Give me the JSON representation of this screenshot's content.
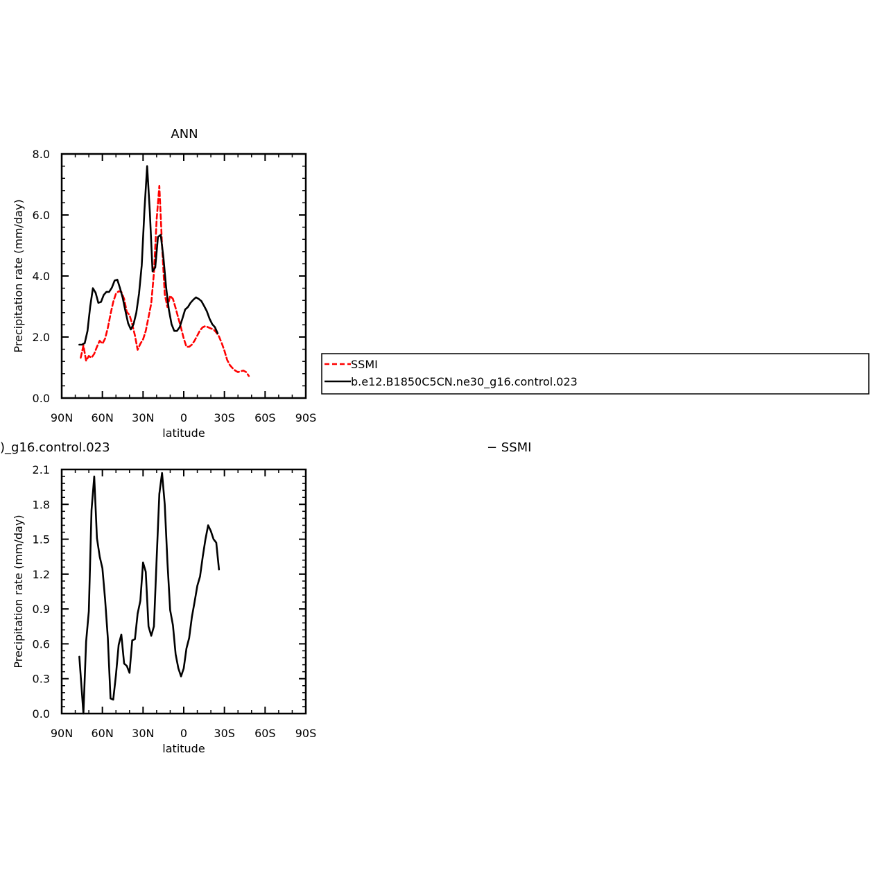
{
  "chart_data": [
    {
      "type": "line",
      "title": "ANN",
      "xlabel": "latitude",
      "ylabel": "Precipitation rate (mm/day)",
      "xlim": [
        -90,
        90
      ],
      "ylim": [
        0,
        8
      ],
      "x_tick_values": [
        -90,
        -60,
        -30,
        0,
        30,
        60,
        90
      ],
      "x_tick_labels": [
        "90N",
        "60N",
        "30N",
        "0",
        "30S",
        "60S",
        "90S"
      ],
      "y_tick_values": [
        0,
        2,
        4,
        6,
        8
      ],
      "y_tick_labels": [
        "0.0",
        "2.0",
        "4.0",
        "6.0",
        "8.0"
      ],
      "series": [
        {
          "name": "SSMI",
          "color": "#ff0000",
          "dash": "dashed",
          "points": [
            [
              -76,
              1.32
            ],
            [
              -74,
              1.72
            ],
            [
              -72,
              1.22
            ],
            [
              -70,
              1.38
            ],
            [
              -68,
              1.32
            ],
            [
              -66,
              1.45
            ],
            [
              -64,
              1.68
            ],
            [
              -62,
              1.88
            ],
            [
              -60,
              1.78
            ],
            [
              -58,
              1.95
            ],
            [
              -56,
              2.3
            ],
            [
              -54,
              2.75
            ],
            [
              -52,
              3.15
            ],
            [
              -50,
              3.42
            ],
            [
              -48,
              3.5
            ],
            [
              -46,
              3.48
            ],
            [
              -44,
              3.25
            ],
            [
              -42,
              2.82
            ],
            [
              -40,
              2.72
            ],
            [
              -38,
              2.42
            ],
            [
              -36,
              2.05
            ],
            [
              -34,
              1.58
            ],
            [
              -32,
              1.78
            ],
            [
              -30,
              1.92
            ],
            [
              -28,
              2.2
            ],
            [
              -26,
              2.65
            ],
            [
              -24,
              3.1
            ],
            [
              -22,
              4.1
            ],
            [
              -20,
              5.85
            ],
            [
              -18,
              6.95
            ],
            [
              -16,
              5.0
            ],
            [
              -14,
              3.4
            ],
            [
              -12,
              2.98
            ],
            [
              -10,
              3.35
            ],
            [
              -8,
              3.25
            ],
            [
              -6,
              2.95
            ],
            [
              -4,
              2.62
            ],
            [
              -2,
              2.3
            ],
            [
              0,
              1.95
            ],
            [
              2,
              1.68
            ],
            [
              4,
              1.68
            ],
            [
              6,
              1.75
            ],
            [
              8,
              1.88
            ],
            [
              10,
              2.05
            ],
            [
              12,
              2.22
            ],
            [
              14,
              2.32
            ],
            [
              16,
              2.36
            ],
            [
              18,
              2.32
            ],
            [
              20,
              2.28
            ],
            [
              22,
              2.25
            ],
            [
              24,
              2.15
            ],
            [
              26,
              2.02
            ],
            [
              28,
              1.8
            ],
            [
              30,
              1.55
            ],
            [
              32,
              1.25
            ],
            [
              34,
              1.08
            ],
            [
              36,
              0.98
            ],
            [
              38,
              0.9
            ],
            [
              40,
              0.85
            ],
            [
              42,
              0.88
            ],
            [
              44,
              0.9
            ],
            [
              46,
              0.85
            ],
            [
              48,
              0.72
            ]
          ]
        },
        {
          "name": "b.e12.B1850C5CN.ne30_g16.control.023",
          "color": "#000000",
          "dash": "solid",
          "points": [
            [
              -77,
              1.75
            ],
            [
              -75,
              1.75
            ],
            [
              -73,
              1.8
            ],
            [
              -71,
              2.2
            ],
            [
              -69,
              3.0
            ],
            [
              -67,
              3.6
            ],
            [
              -65,
              3.45
            ],
            [
              -63,
              3.12
            ],
            [
              -61,
              3.15
            ],
            [
              -59,
              3.38
            ],
            [
              -57,
              3.48
            ],
            [
              -55,
              3.48
            ],
            [
              -53,
              3.62
            ],
            [
              -51,
              3.85
            ],
            [
              -49,
              3.88
            ],
            [
              -47,
              3.6
            ],
            [
              -45,
              3.28
            ],
            [
              -43,
              2.85
            ],
            [
              -41,
              2.45
            ],
            [
              -39,
              2.25
            ],
            [
              -37,
              2.42
            ],
            [
              -35,
              2.8
            ],
            [
              -33,
              3.42
            ],
            [
              -31,
              4.35
            ],
            [
              -29,
              6.15
            ],
            [
              -27,
              7.6
            ],
            [
              -25,
              6.1
            ],
            [
              -23,
              4.15
            ],
            [
              -21,
              4.28
            ],
            [
              -19,
              5.28
            ],
            [
              -17,
              5.35
            ],
            [
              -15,
              4.6
            ],
            [
              -13,
              3.62
            ],
            [
              -11,
              2.9
            ],
            [
              -9,
              2.42
            ],
            [
              -7,
              2.2
            ],
            [
              -5,
              2.2
            ],
            [
              -3,
              2.32
            ],
            [
              -1,
              2.6
            ],
            [
              1,
              2.9
            ],
            [
              3,
              2.98
            ],
            [
              5,
              3.12
            ],
            [
              7,
              3.22
            ],
            [
              9,
              3.3
            ],
            [
              11,
              3.25
            ],
            [
              13,
              3.18
            ],
            [
              15,
              3.02
            ],
            [
              17,
              2.85
            ],
            [
              19,
              2.6
            ],
            [
              21,
              2.42
            ],
            [
              23,
              2.32
            ],
            [
              25,
              2.12
            ]
          ]
        }
      ],
      "legend": {
        "placement": "right",
        "entries": [
          "SSMI",
          "b.e12.B1850C5CN.ne30_g16.control.023"
        ]
      }
    },
    {
      "type": "line",
      "title_fragment_left": ")_g16.control.023",
      "title_fragment_right": "− SSMI",
      "xlabel": "latitude",
      "ylabel": "Precipitation rate (mm/day)",
      "xlim": [
        -90,
        90
      ],
      "ylim": [
        0,
        2.1
      ],
      "x_tick_values": [
        -90,
        -60,
        -30,
        0,
        30,
        60,
        90
      ],
      "x_tick_labels": [
        "90N",
        "60N",
        "30N",
        "0",
        "30S",
        "60S",
        "90S"
      ],
      "y_tick_values": [
        0,
        0.3,
        0.6,
        0.9,
        1.2,
        1.5,
        1.8,
        2.1
      ],
      "y_tick_labels": [
        "0.0",
        "0.3",
        "0.6",
        "0.9",
        "1.2",
        "1.5",
        "1.8",
        "2.1"
      ],
      "series": [
        {
          "color": "#000000",
          "dash": "solid",
          "points": [
            [
              -77,
              0.49
            ],
            [
              -74,
              0.0
            ],
            [
              -72,
              0.62
            ],
            [
              -70,
              0.88
            ],
            [
              -68,
              1.75
            ],
            [
              -66,
              2.04
            ],
            [
              -64,
              1.51
            ],
            [
              -62,
              1.35
            ],
            [
              -60,
              1.25
            ],
            [
              -58,
              0.98
            ],
            [
              -56,
              0.65
            ],
            [
              -54,
              0.13
            ],
            [
              -52,
              0.12
            ],
            [
              -50,
              0.33
            ],
            [
              -48,
              0.59
            ],
            [
              -46,
              0.68
            ],
            [
              -44,
              0.43
            ],
            [
              -42,
              0.41
            ],
            [
              -40,
              0.35
            ],
            [
              -38,
              0.63
            ],
            [
              -36,
              0.64
            ],
            [
              -34,
              0.86
            ],
            [
              -32,
              0.97
            ],
            [
              -30,
              1.3
            ],
            [
              -28,
              1.22
            ],
            [
              -26,
              0.75
            ],
            [
              -24,
              0.67
            ],
            [
              -22,
              0.75
            ],
            [
              -20,
              1.33
            ],
            [
              -18,
              1.89
            ],
            [
              -16,
              2.07
            ],
            [
              -14,
              1.8
            ],
            [
              -12,
              1.3
            ],
            [
              -10,
              0.89
            ],
            [
              -8,
              0.76
            ],
            [
              -6,
              0.51
            ],
            [
              -4,
              0.39
            ],
            [
              -2,
              0.32
            ],
            [
              0,
              0.39
            ],
            [
              2,
              0.56
            ],
            [
              4,
              0.65
            ],
            [
              6,
              0.83
            ],
            [
              8,
              0.96
            ],
            [
              10,
              1.1
            ],
            [
              12,
              1.18
            ],
            [
              14,
              1.35
            ],
            [
              16,
              1.5
            ],
            [
              18,
              1.62
            ],
            [
              20,
              1.57
            ],
            [
              22,
              1.5
            ],
            [
              24,
              1.47
            ],
            [
              26,
              1.24
            ]
          ]
        }
      ]
    }
  ]
}
